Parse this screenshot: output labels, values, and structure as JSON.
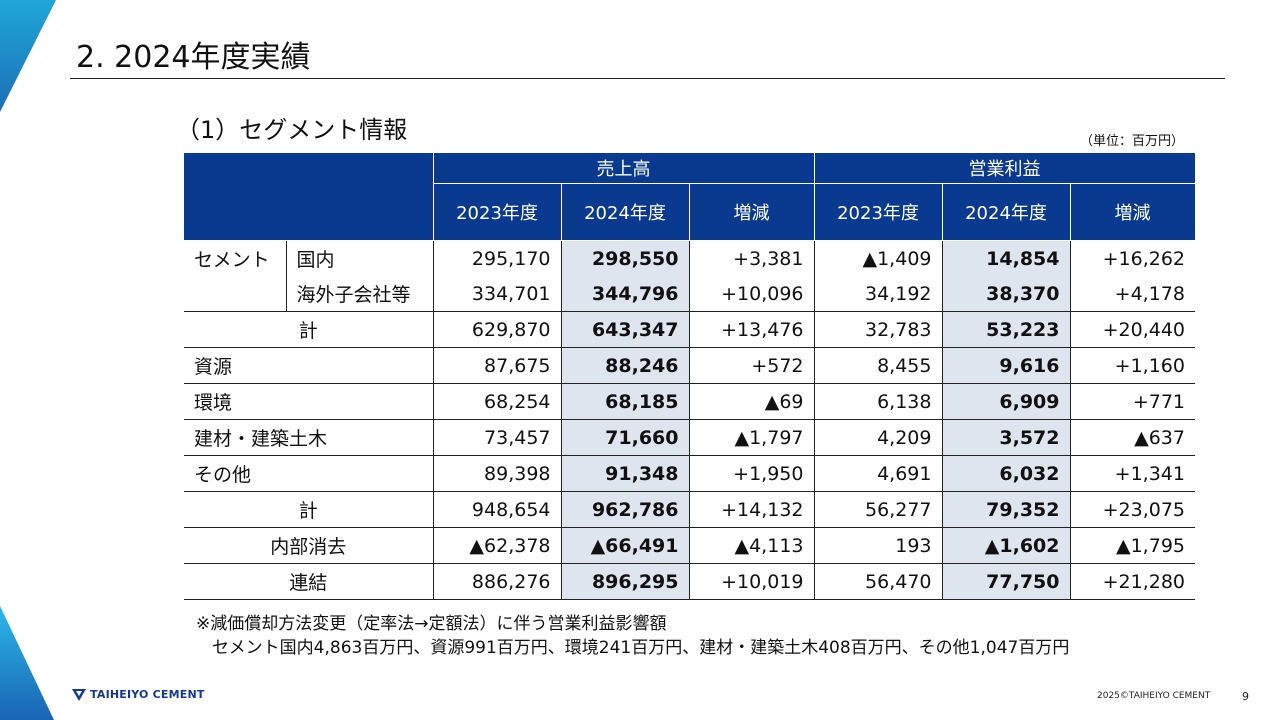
{
  "slide": {
    "title": "2.  2024年度実績",
    "subtitle": "（1）セグメント情報",
    "unit": "（単位：百万円）"
  },
  "table": {
    "group_sales": "売上高",
    "group_op": "営業利益",
    "col_2023": "2023年度",
    "col_2024": "2024年度",
    "col_diff": "増減",
    "rows": {
      "cement_label": "セメント",
      "domestic": {
        "label": "国内",
        "s23": "295,170",
        "s24": "298,550",
        "sd": "+3,381",
        "o23": "▲1,409",
        "o24": "14,854",
        "od": "+16,262"
      },
      "overseas": {
        "label": "海外子会社等",
        "s23": "334,701",
        "s24": "344,796",
        "sd": "+10,096",
        "o23": "34,192",
        "o24": "38,370",
        "od": "+4,178"
      },
      "cement_total": {
        "label": "計",
        "s23": "629,870",
        "s24": "643,347",
        "sd": "+13,476",
        "o23": "32,783",
        "o24": "53,223",
        "od": "+20,440"
      },
      "resources": {
        "label": "資源",
        "s23": "87,675",
        "s24": "88,246",
        "sd": "+572",
        "o23": "8,455",
        "o24": "9,616",
        "od": "+1,160"
      },
      "environment": {
        "label": "環境",
        "s23": "68,254",
        "s24": "68,185",
        "sd": "▲69",
        "o23": "6,138",
        "o24": "6,909",
        "od": "+771"
      },
      "construction": {
        "label": "建材・建築土木",
        "s23": "73,457",
        "s24": "71,660",
        "sd": "▲1,797",
        "o23": "4,209",
        "o24": "3,572",
        "od": "▲637"
      },
      "other": {
        "label": "その他",
        "s23": "89,398",
        "s24": "91,348",
        "sd": "+1,950",
        "o23": "4,691",
        "o24": "6,032",
        "od": "+1,341"
      },
      "total": {
        "label": "計",
        "s23": "948,654",
        "s24": "962,786",
        "sd": "+14,132",
        "o23": "56,277",
        "o24": "79,352",
        "od": "+23,075"
      },
      "elimination": {
        "label": "内部消去",
        "s23": "▲62,378",
        "s24": "▲66,491",
        "sd": "▲4,113",
        "o23": "193",
        "o24": "▲1,602",
        "od": "▲1,795"
      },
      "consolidated": {
        "label": "連結",
        "s23": "886,276",
        "s24": "896,295",
        "sd": "+10,019",
        "o23": "56,470",
        "o24": "77,750",
        "od": "+21,280"
      }
    }
  },
  "note": {
    "line1": "※減価償却方法変更（定率法→定額法）に伴う営業利益影響額",
    "line2": "セメント国内4,863百万円、資源991百万円、環境241百万円、建材・建築土木408百万円、その他1,047百万円"
  },
  "footer": {
    "logo_text": "TAIHEIYO CEMENT",
    "copyright": "2025©TAIHEIYO CEMENT",
    "page_number": "9"
  },
  "colors": {
    "header_bg": "#0a3990",
    "highlight_bg": "#dfe5ee",
    "deco_light": "#29b6e6",
    "deco_dark": "#1a64b4"
  }
}
